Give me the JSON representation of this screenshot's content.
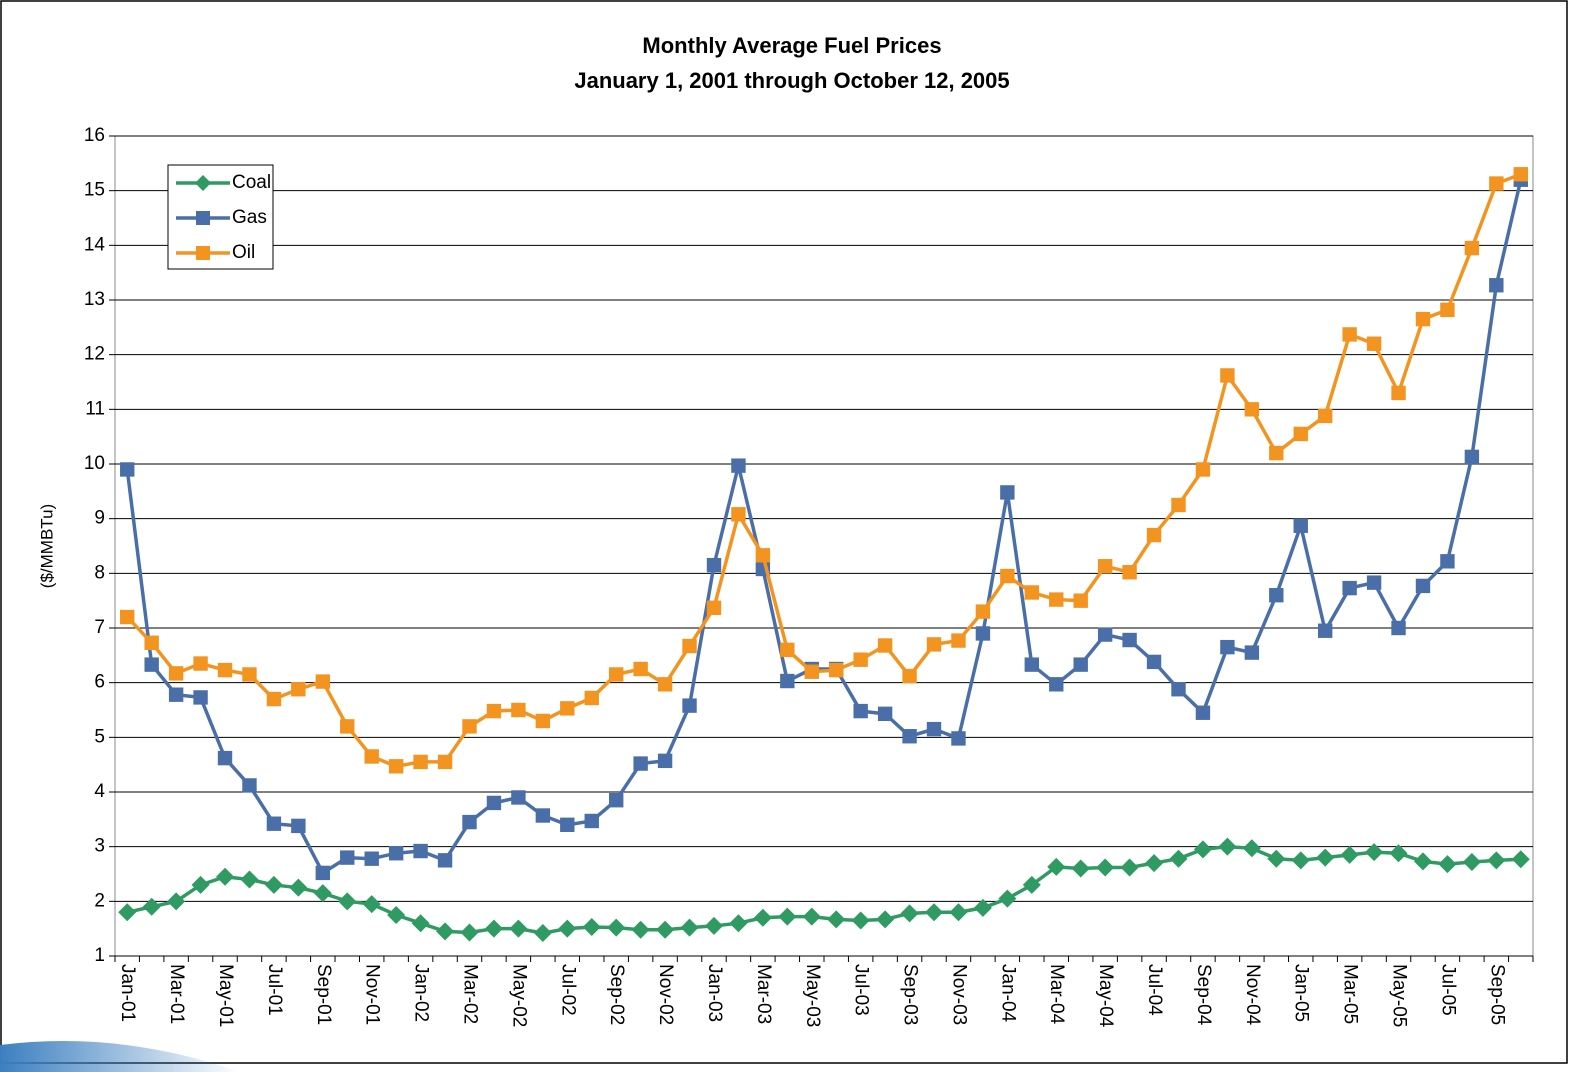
{
  "chart_data": {
    "type": "line",
    "title": "Monthly Average Fuel Prices",
    "subtitle": "January 1, 2001 through October 12, 2005",
    "y_label": "($/MMBTu)",
    "categories": [
      "Jan-01",
      null,
      "Mar-01",
      null,
      "May-01",
      null,
      "Jul-01",
      null,
      "Sep-01",
      null,
      "Nov-01",
      null,
      "Jan-02",
      null,
      "Mar-02",
      null,
      "May-02",
      null,
      "Jul-02",
      null,
      "Sep-02",
      null,
      "Nov-02",
      null,
      "Jan-03",
      null,
      "Mar-03",
      null,
      "May-03",
      null,
      "Jul-03",
      null,
      "Sep-03",
      null,
      "Nov-03",
      null,
      "Jan-04",
      null,
      "Mar-04",
      null,
      "May-04",
      null,
      "Jul-04",
      null,
      "Sep-04",
      null,
      "Nov-04",
      null,
      "Jan-05",
      null,
      "Mar-05",
      null,
      "May-05",
      null,
      "Jul-05",
      null,
      "Sep-05",
      null
    ],
    "series": [
      {
        "name": "Coal",
        "color": "#2f9a62",
        "marker": "diamond",
        "values": [
          1.8,
          1.9,
          2.0,
          2.3,
          2.45,
          2.4,
          2.3,
          2.25,
          2.15,
          2.0,
          1.95,
          1.75,
          1.6,
          1.45,
          1.43,
          1.5,
          1.5,
          1.42,
          1.5,
          1.53,
          1.52,
          1.48,
          1.48,
          1.52,
          1.55,
          1.6,
          1.7,
          1.72,
          1.72,
          1.67,
          1.65,
          1.67,
          1.78,
          1.8,
          1.8,
          1.88,
          2.05,
          2.3,
          2.63,
          2.6,
          2.62,
          2.62,
          2.7,
          2.78,
          2.95,
          3.0,
          2.97,
          2.78,
          2.75,
          2.8,
          2.85,
          2.9,
          2.88,
          2.73,
          2.68,
          2.72,
          2.75,
          2.77
        ]
      },
      {
        "name": "Gas",
        "color": "#4a6fa8",
        "marker": "square",
        "values": [
          9.9,
          6.33,
          5.78,
          5.73,
          4.62,
          4.12,
          3.42,
          3.38,
          2.52,
          2.8,
          2.78,
          2.88,
          2.92,
          2.75,
          3.45,
          3.8,
          3.9,
          3.57,
          3.4,
          3.47,
          3.85,
          4.52,
          4.57,
          5.58,
          8.15,
          9.97,
          8.08,
          6.03,
          6.25,
          6.25,
          5.48,
          5.43,
          5.02,
          5.15,
          4.98,
          6.9,
          9.48,
          6.33,
          5.97,
          6.33,
          6.88,
          6.78,
          6.38,
          5.88,
          5.45,
          6.65,
          6.55,
          7.6,
          8.87,
          6.95,
          7.73,
          7.83,
          7.0,
          7.77,
          8.22,
          10.13,
          13.27,
          15.2
        ]
      },
      {
        "name": "Oil",
        "color": "#f39420",
        "marker": "square",
        "values": [
          7.2,
          6.73,
          6.17,
          6.35,
          6.23,
          6.15,
          5.7,
          5.88,
          6.02,
          5.2,
          4.65,
          4.47,
          4.55,
          4.55,
          5.2,
          5.48,
          5.5,
          5.3,
          5.53,
          5.72,
          6.15,
          6.25,
          5.97,
          6.67,
          7.37,
          9.08,
          8.33,
          6.6,
          6.2,
          6.23,
          6.42,
          6.68,
          6.12,
          6.7,
          6.77,
          7.3,
          7.95,
          7.65,
          7.52,
          7.5,
          8.13,
          8.02,
          8.7,
          9.25,
          9.9,
          11.62,
          11.0,
          10.2,
          10.55,
          10.88,
          12.37,
          12.2,
          11.3,
          12.65,
          12.82,
          13.95,
          15.13,
          15.3
        ]
      }
    ],
    "ylim": [
      1,
      16
    ],
    "yticks": [
      1,
      2,
      3,
      4,
      5,
      6,
      7,
      8,
      9,
      10,
      11,
      12,
      13,
      14,
      15,
      16
    ],
    "grid": true,
    "legend": "upper left"
  }
}
